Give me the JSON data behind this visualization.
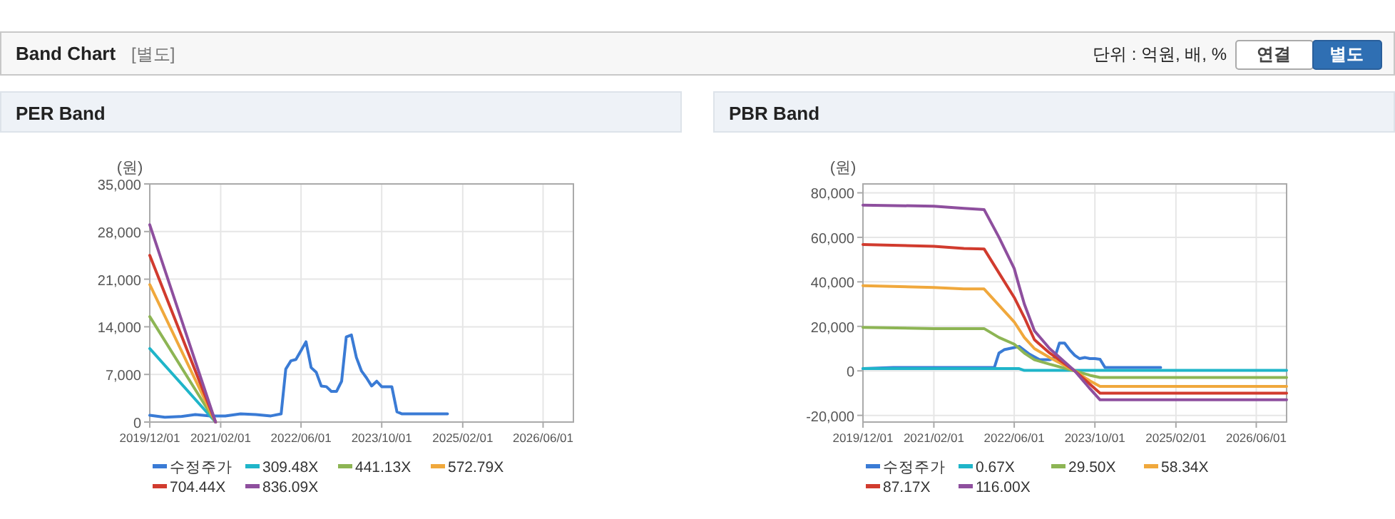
{
  "chart_data": [
    {
      "type": "other",
      "title": "Band Chart",
      "annotations": [
        "[별도]",
        "단위 : 억원, 배, %",
        "연결",
        "별도"
      ]
    },
    {
      "type": "line",
      "title": "PER Band",
      "ylabel": "(원)",
      "xlim": [
        "2019-12-01",
        "2026-12-01"
      ],
      "xticks": [
        {
          "value": "2019-12-01",
          "label": "2019/12/01"
        },
        {
          "value": "2021-02-01",
          "label": "2021/02/01"
        },
        {
          "value": "2022-06-01",
          "label": "2022/06/01"
        },
        {
          "value": "2023-10-01",
          "label": "2023/10/01"
        },
        {
          "value": "2025-02-01",
          "label": "2025/02/01"
        },
        {
          "value": "2026-06-01",
          "label": "2026/06/01"
        }
      ],
      "ylim": [
        0,
        35000
      ],
      "yticks": [
        0,
        {
          "value": 7000,
          "label": "7,000"
        },
        {
          "value": 14000,
          "label": "14,000"
        },
        {
          "value": 21000,
          "label": "21,000"
        },
        {
          "value": 28000,
          "label": "28,000"
        },
        {
          "value": 35000,
          "label": "35,000"
        }
      ],
      "grid": true,
      "legend": "bottom",
      "series": [
        {
          "name": "수정주가",
          "color": "#3a7bd5",
          "x": [
            "2019-12-01",
            "2020-03-01",
            "2020-06-01",
            "2020-09-01",
            "2020-12-01",
            "2021-03-01",
            "2021-06-01",
            "2021-09-01",
            "2021-12-01",
            "2022-02-01",
            "2022-03-01",
            "2022-04-01",
            "2022-05-01",
            "2022-06-01",
            "2022-07-01",
            "2022-08-01",
            "2022-09-01",
            "2022-10-01",
            "2022-11-01",
            "2022-12-01",
            "2023-01-01",
            "2023-02-01",
            "2023-03-01",
            "2023-04-01",
            "2023-05-01",
            "2023-06-01",
            "2023-07-01",
            "2023-08-01",
            "2023-09-01",
            "2023-10-01",
            "2023-11-01",
            "2023-12-01",
            "2024-01-01",
            "2024-02-01",
            "2024-11-01"
          ],
          "values": [
            1000,
            700,
            800,
            1100,
            900,
            900,
            1200,
            1100,
            900,
            1200,
            7800,
            9000,
            9200,
            10500,
            11800,
            8000,
            7300,
            5300,
            5200,
            4500,
            4500,
            6000,
            12500,
            12800,
            9500,
            7500,
            6500,
            5300,
            6000,
            5200,
            5200,
            5200,
            1500,
            1200,
            1200
          ]
        },
        {
          "name": "309.48X",
          "color": "#1fb5c9",
          "x": [
            "2019-12-01",
            "2021-01-01"
          ],
          "values": [
            10800,
            0
          ]
        },
        {
          "name": "441.13X",
          "color": "#8db554",
          "x": [
            "2019-12-01",
            "2021-01-01"
          ],
          "values": [
            15500,
            0
          ]
        },
        {
          "name": "572.79X",
          "color": "#f0a83c",
          "x": [
            "2019-12-01",
            "2021-01-01"
          ],
          "values": [
            20200,
            0
          ]
        },
        {
          "name": "704.44X",
          "color": "#d13b2e",
          "x": [
            "2019-12-01",
            "2021-01-01"
          ],
          "values": [
            24500,
            0
          ]
        },
        {
          "name": "836.09X",
          "color": "#8e4f9e",
          "x": [
            "2019-12-01",
            "2021-01-01"
          ],
          "values": [
            29000,
            0
          ]
        }
      ]
    },
    {
      "type": "line",
      "title": "PBR Band",
      "ylabel": "(원)",
      "xlim": [
        "2019-12-01",
        "2026-12-01"
      ],
      "xticks": [
        {
          "value": "2019-12-01",
          "label": "2019/12/01"
        },
        {
          "value": "2021-02-01",
          "label": "2021/02/01"
        },
        {
          "value": "2022-06-01",
          "label": "2022/06/01"
        },
        {
          "value": "2023-10-01",
          "label": "2023/10/01"
        },
        {
          "value": "2025-02-01",
          "label": "2025/02/01"
        },
        {
          "value": "2026-06-01",
          "label": "2026/06/01"
        }
      ],
      "ylim": [
        -23000,
        84000
      ],
      "yticks": [
        {
          "value": -20000,
          "label": "-20,000"
        },
        0,
        {
          "value": 20000,
          "label": "20,000"
        },
        {
          "value": 40000,
          "label": "40,000"
        },
        {
          "value": 60000,
          "label": "60,000"
        },
        {
          "value": 80000,
          "label": "80,000"
        }
      ],
      "grid": true,
      "legend": "bottom",
      "series": [
        {
          "name": "수정주가",
          "color": "#3a7bd5",
          "x": [
            "2019-12-01",
            "2020-06-01",
            "2021-06-01",
            "2022-02-01",
            "2022-03-01",
            "2022-04-01",
            "2022-06-01",
            "2022-07-01",
            "2022-09-01",
            "2022-11-01",
            "2023-01-01",
            "2023-02-01",
            "2023-03-01",
            "2023-04-01",
            "2023-05-01",
            "2023-06-01",
            "2023-07-01",
            "2023-08-01",
            "2023-09-01",
            "2023-10-01",
            "2023-11-01",
            "2023-12-01",
            "2024-11-01"
          ],
          "values": [
            1000,
            1500,
            1500,
            1500,
            8000,
            9500,
            10500,
            11000,
            7500,
            5000,
            5000,
            6000,
            12500,
            12500,
            9500,
            7000,
            5500,
            6000,
            5500,
            5500,
            5200,
            1500,
            1500
          ]
        },
        {
          "name": "0.67X",
          "color": "#1fb5c9",
          "x": [
            "2019-12-01",
            "2022-07-01",
            "2022-08-01",
            "2026-12-01"
          ],
          "values": [
            1000,
            1000,
            200,
            200
          ]
        },
        {
          "name": "29.50X",
          "color": "#8db554",
          "x": [
            "2019-12-01",
            "2021-02-01",
            "2021-12-01",
            "2022-03-01",
            "2022-06-01",
            "2022-08-01",
            "2022-10-01",
            "2023-01-01",
            "2023-06-01",
            "2023-09-01",
            "2023-11-01",
            "2026-12-01"
          ],
          "values": [
            19500,
            19000,
            19000,
            15000,
            12000,
            8000,
            5000,
            3000,
            0,
            -2000,
            -3000,
            -3000
          ]
        },
        {
          "name": "58.34X",
          "color": "#f0a83c",
          "x": [
            "2019-12-01",
            "2021-02-01",
            "2021-08-01",
            "2021-12-01",
            "2022-06-01",
            "2022-08-01",
            "2022-10-01",
            "2023-01-01",
            "2023-06-01",
            "2023-09-01",
            "2023-11-01",
            "2026-12-01"
          ],
          "values": [
            38300,
            37500,
            36800,
            36800,
            22000,
            15000,
            10000,
            6000,
            0,
            -4500,
            -7000,
            -7000
          ]
        },
        {
          "name": "87.17X",
          "color": "#d13b2e",
          "x": [
            "2019-12-01",
            "2021-02-01",
            "2021-08-01",
            "2021-12-01",
            "2022-03-01",
            "2022-06-01",
            "2022-08-01",
            "2022-10-01",
            "2023-01-01",
            "2023-06-01",
            "2023-09-01",
            "2023-11-01",
            "2026-12-01"
          ],
          "values": [
            56800,
            56000,
            55000,
            54800,
            44000,
            33000,
            24000,
            14000,
            8000,
            0,
            -6000,
            -10000,
            -10000
          ]
        },
        {
          "name": "116.00X",
          "color": "#8e4f9e",
          "x": [
            "2019-12-01",
            "2021-02-01",
            "2021-08-01",
            "2021-12-01",
            "2022-03-01",
            "2022-06-01",
            "2022-07-01",
            "2022-08-01",
            "2022-10-01",
            "2023-01-01",
            "2023-06-01",
            "2023-09-01",
            "2023-11-01",
            "2026-12-01"
          ],
          "values": [
            74500,
            74000,
            73000,
            72500,
            60000,
            46000,
            38000,
            30000,
            18000,
            10000,
            0,
            -8000,
            -13000,
            -13000
          ]
        }
      ]
    }
  ]
}
